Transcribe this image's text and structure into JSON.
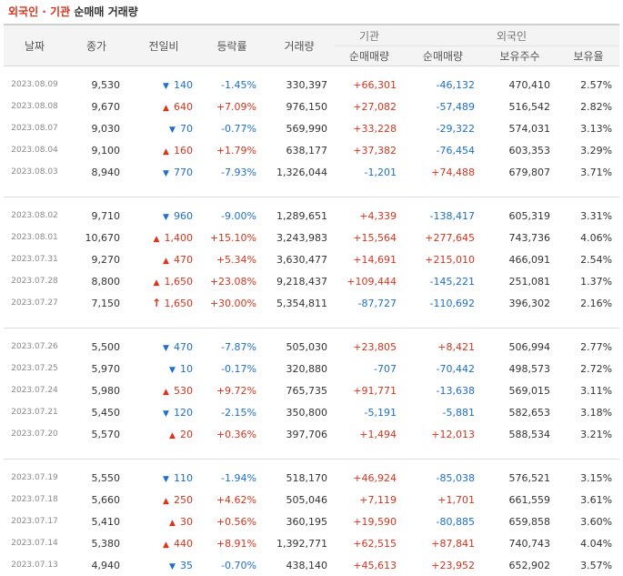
{
  "title": {
    "part1": "외국인 · 기관",
    "part2": "순매매 거래량"
  },
  "headers": {
    "date": "날짜",
    "close": "종가",
    "prev": "전일비",
    "rate": "등락률",
    "volume": "거래량",
    "inst_group": "기관",
    "inst_net": "순매매량",
    "foreign_group": "외국인",
    "foreign_net": "순매매량",
    "foreign_hold": "보유주수",
    "foreign_ratio": "보유율"
  },
  "colors": {
    "up": "#d9331c",
    "down": "#1a6fd1"
  },
  "groups": [
    {
      "rows": [
        {
          "date": "2023.08.09",
          "close": "9,530",
          "dir": "down",
          "diff": "140",
          "rate": "-1.45%",
          "volume": "330,397",
          "inst": "+66,301",
          "foreign": "-46,132",
          "hold": "470,410",
          "ratio": "2.57%"
        },
        {
          "date": "2023.08.08",
          "close": "9,670",
          "dir": "up",
          "diff": "640",
          "rate": "+7.09%",
          "volume": "976,150",
          "inst": "+27,082",
          "foreign": "-57,489",
          "hold": "516,542",
          "ratio": "2.82%"
        },
        {
          "date": "2023.08.07",
          "close": "9,030",
          "dir": "down",
          "diff": "70",
          "rate": "-0.77%",
          "volume": "569,990",
          "inst": "+33,228",
          "foreign": "-29,322",
          "hold": "574,031",
          "ratio": "3.13%"
        },
        {
          "date": "2023.08.04",
          "close": "9,100",
          "dir": "up",
          "diff": "160",
          "rate": "+1.79%",
          "volume": "638,177",
          "inst": "+37,382",
          "foreign": "-76,454",
          "hold": "603,353",
          "ratio": "3.29%"
        },
        {
          "date": "2023.08.03",
          "close": "8,940",
          "dir": "down",
          "diff": "770",
          "rate": "-7.93%",
          "volume": "1,326,044",
          "inst": "-1,201",
          "foreign": "+74,488",
          "hold": "679,807",
          "ratio": "3.71%"
        }
      ]
    },
    {
      "rows": [
        {
          "date": "2023.08.02",
          "close": "9,710",
          "dir": "down",
          "diff": "960",
          "rate": "-9.00%",
          "volume": "1,289,651",
          "inst": "+4,339",
          "foreign": "-138,417",
          "hold": "605,319",
          "ratio": "3.31%"
        },
        {
          "date": "2023.08.01",
          "close": "10,670",
          "dir": "up",
          "diff": "1,400",
          "rate": "+15.10%",
          "volume": "3,243,983",
          "inst": "+15,564",
          "foreign": "+277,645",
          "hold": "743,736",
          "ratio": "4.06%"
        },
        {
          "date": "2023.07.31",
          "close": "9,270",
          "dir": "up",
          "diff": "470",
          "rate": "+5.34%",
          "volume": "3,630,477",
          "inst": "+14,691",
          "foreign": "+215,010",
          "hold": "466,091",
          "ratio": "2.54%"
        },
        {
          "date": "2023.07.28",
          "close": "8,800",
          "dir": "up",
          "diff": "1,650",
          "rate": "+23.08%",
          "volume": "9,218,437",
          "inst": "+109,444",
          "foreign": "-145,221",
          "hold": "251,081",
          "ratio": "1.37%"
        },
        {
          "date": "2023.07.27",
          "close": "7,150",
          "dir": "limit",
          "diff": "1,650",
          "rate": "+30.00%",
          "volume": "5,354,811",
          "inst": "-87,727",
          "foreign": "-110,692",
          "hold": "396,302",
          "ratio": "2.16%"
        }
      ]
    },
    {
      "rows": [
        {
          "date": "2023.07.26",
          "close": "5,500",
          "dir": "down",
          "diff": "470",
          "rate": "-7.87%",
          "volume": "505,030",
          "inst": "+23,805",
          "foreign": "+8,421",
          "hold": "506,994",
          "ratio": "2.77%"
        },
        {
          "date": "2023.07.25",
          "close": "5,970",
          "dir": "down",
          "diff": "10",
          "rate": "-0.17%",
          "volume": "320,880",
          "inst": "-707",
          "foreign": "-70,442",
          "hold": "498,573",
          "ratio": "2.72%"
        },
        {
          "date": "2023.07.24",
          "close": "5,980",
          "dir": "up",
          "diff": "530",
          "rate": "+9.72%",
          "volume": "765,735",
          "inst": "+91,771",
          "foreign": "-13,638",
          "hold": "569,015",
          "ratio": "3.11%"
        },
        {
          "date": "2023.07.21",
          "close": "5,450",
          "dir": "down",
          "diff": "120",
          "rate": "-2.15%",
          "volume": "350,800",
          "inst": "-5,191",
          "foreign": "-5,881",
          "hold": "582,653",
          "ratio": "3.18%"
        },
        {
          "date": "2023.07.20",
          "close": "5,570",
          "dir": "up",
          "diff": "20",
          "rate": "+0.36%",
          "volume": "397,706",
          "inst": "+1,494",
          "foreign": "+12,013",
          "hold": "588,534",
          "ratio": "3.21%"
        }
      ]
    },
    {
      "rows": [
        {
          "date": "2023.07.19",
          "close": "5,550",
          "dir": "down",
          "diff": "110",
          "rate": "-1.94%",
          "volume": "518,170",
          "inst": "+46,924",
          "foreign": "-85,038",
          "hold": "576,521",
          "ratio": "3.15%"
        },
        {
          "date": "2023.07.18",
          "close": "5,660",
          "dir": "up",
          "diff": "250",
          "rate": "+4.62%",
          "volume": "505,046",
          "inst": "+7,119",
          "foreign": "+1,701",
          "hold": "661,559",
          "ratio": "3.61%"
        },
        {
          "date": "2023.07.17",
          "close": "5,410",
          "dir": "up",
          "diff": "30",
          "rate": "+0.56%",
          "volume": "360,195",
          "inst": "+19,590",
          "foreign": "-80,885",
          "hold": "659,858",
          "ratio": "3.60%"
        },
        {
          "date": "2023.07.14",
          "close": "5,380",
          "dir": "up",
          "diff": "440",
          "rate": "+8.91%",
          "volume": "1,392,771",
          "inst": "+62,515",
          "foreign": "+87,841",
          "hold": "740,743",
          "ratio": "4.04%"
        },
        {
          "date": "2023.07.13",
          "close": "4,940",
          "dir": "down",
          "diff": "35",
          "rate": "-0.70%",
          "volume": "438,140",
          "inst": "+45,613",
          "foreign": "+23,952",
          "hold": "652,902",
          "ratio": "3.57%"
        }
      ]
    }
  ]
}
